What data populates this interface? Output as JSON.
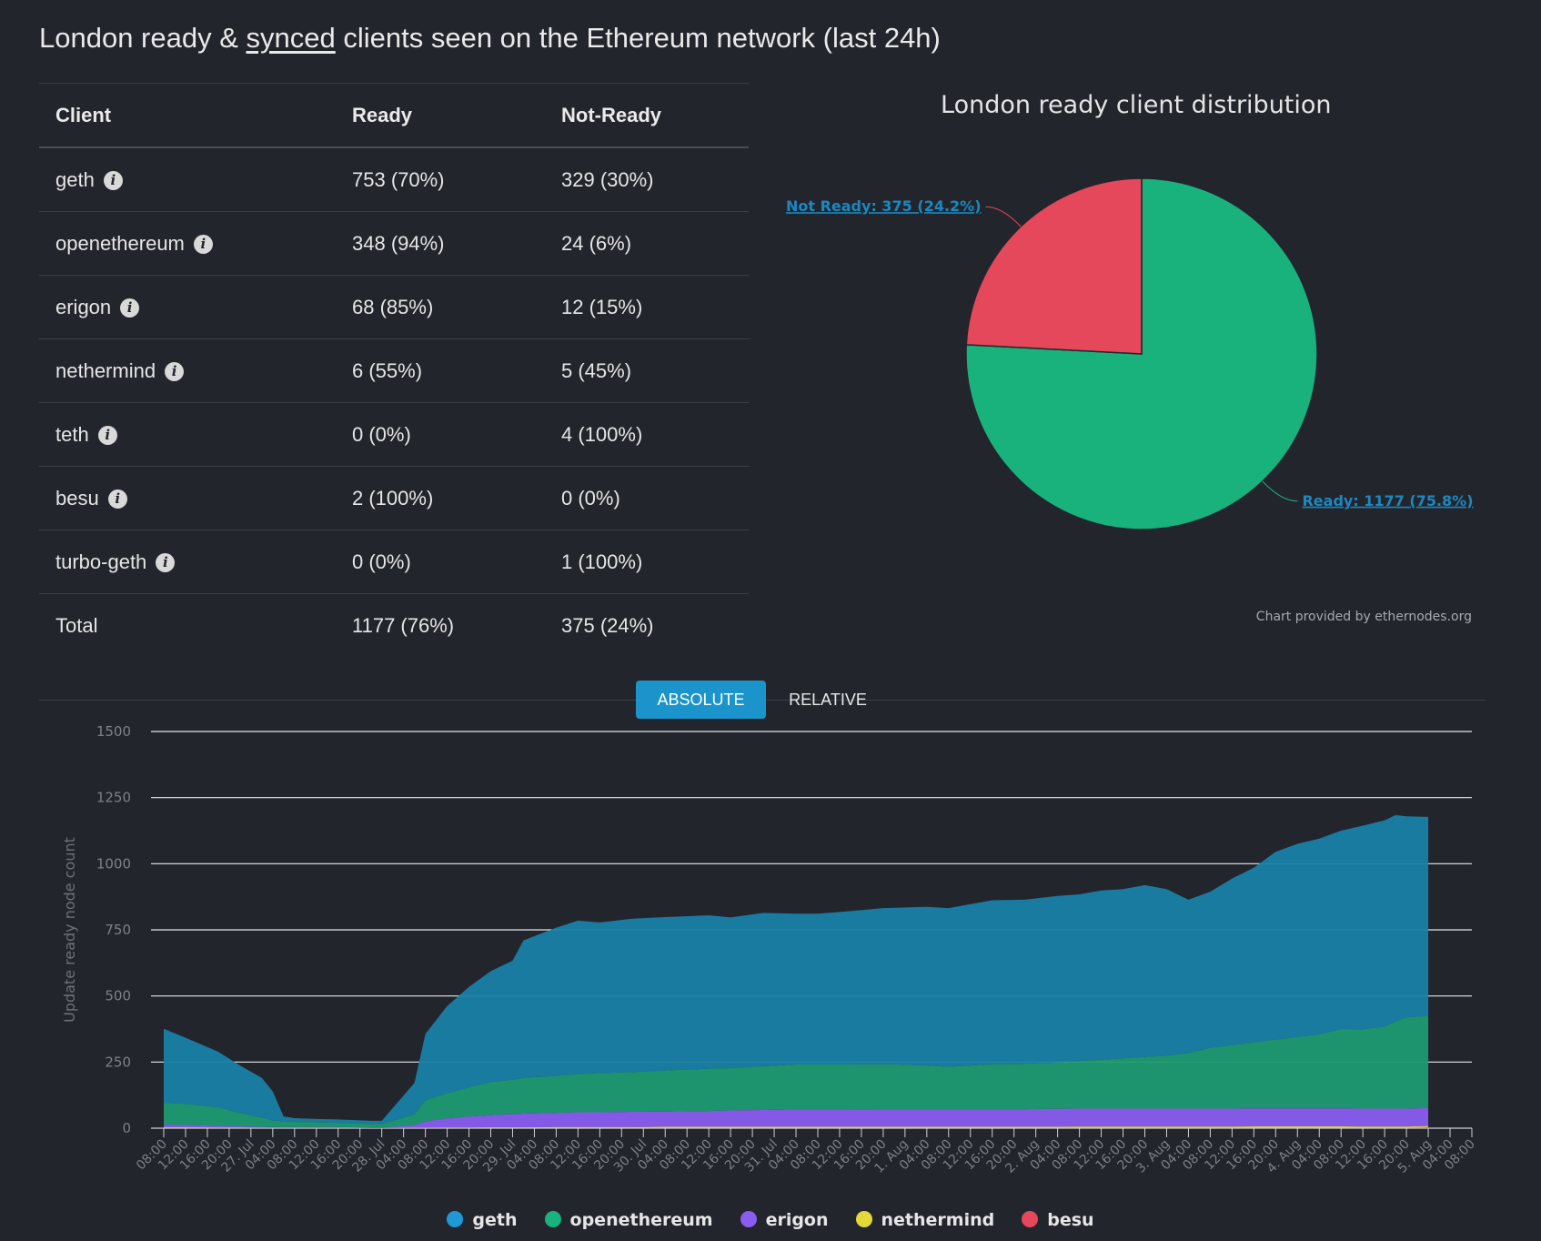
{
  "page": {
    "title_prefix": "London ready & ",
    "title_link": "synced",
    "title_suffix": " clients seen on the Ethereum network (last 24h)"
  },
  "table": {
    "headers": [
      "Client",
      "Ready",
      "Not-Ready"
    ],
    "rows": [
      {
        "client": "geth",
        "ready": "753 (70%)",
        "not_ready": "329 (30%)"
      },
      {
        "client": "openethereum",
        "ready": "348 (94%)",
        "not_ready": "24 (6%)"
      },
      {
        "client": "erigon",
        "ready": "68 (85%)",
        "not_ready": "12 (15%)"
      },
      {
        "client": "nethermind",
        "ready": "6 (55%)",
        "not_ready": "5 (45%)"
      },
      {
        "client": "teth",
        "ready": "0 (0%)",
        "not_ready": "4 (100%)"
      },
      {
        "client": "besu",
        "ready": "2 (100%)",
        "not_ready": "0 (0%)"
      },
      {
        "client": "turbo-geth",
        "ready": "0 (0%)",
        "not_ready": "1 (100%)"
      }
    ],
    "total": {
      "client": "Total",
      "ready": "1177 (76%)",
      "not_ready": "375 (24%)"
    },
    "info_icon": "info-icon"
  },
  "controls": {
    "absolute_label": "ABSOLUTE",
    "relative_label": "RELATIVE",
    "active": "ABSOLUTE"
  },
  "chart_data": [
    {
      "type": "pie",
      "title": "London ready client distribution",
      "credit": "Chart provided by ethernodes.org",
      "slices": [
        {
          "name": "Ready",
          "value": 1177,
          "label": "Ready: 1177 (75.8%)",
          "color": "#19b27c"
        },
        {
          "name": "Not Ready",
          "value": 375,
          "label": "Not Ready: 375 (24.2%)",
          "color": "#e5475b"
        }
      ]
    },
    {
      "type": "area",
      "stacked": true,
      "ylabel": "Update ready node count",
      "ylim": [
        0,
        1500
      ],
      "yticks": [
        0,
        250,
        500,
        750,
        1000,
        1250,
        1500
      ],
      "x_tick_labels": [
        "08:00",
        "12:00",
        "16:00",
        "20:00",
        "27. Jul",
        "04:00",
        "08:00",
        "12:00",
        "16:00",
        "20:00",
        "28. Jul",
        "04:00",
        "08:00",
        "12:00",
        "16:00",
        "20:00",
        "29. Jul",
        "04:00",
        "08:00",
        "12:00",
        "16:00",
        "20:00",
        "30. Jul",
        "04:00",
        "08:00",
        "12:00",
        "16:00",
        "20:00",
        "31. Jul",
        "04:00",
        "08:00",
        "12:00",
        "16:00",
        "20:00",
        "1. Aug",
        "04:00",
        "08:00",
        "12:00",
        "16:00",
        "20:00",
        "2. Aug",
        "04:00",
        "08:00",
        "12:00",
        "16:00",
        "20:00",
        "3. Aug",
        "04:00",
        "08:00",
        "12:00",
        "16:00",
        "20:00",
        "4. Aug",
        "04:00",
        "08:00",
        "12:00",
        "16:00",
        "20:00",
        "5. Aug",
        "04:00",
        "08:00"
      ],
      "x_hours_from_start": [
        0,
        4,
        10,
        14,
        18,
        20,
        22,
        24,
        28,
        32,
        38,
        40,
        46,
        48,
        52,
        56,
        60,
        64,
        66,
        72,
        76,
        80,
        86,
        92,
        100,
        104,
        110,
        116,
        120,
        126,
        132,
        140,
        144,
        148,
        152,
        158,
        164,
        168,
        172,
        176,
        180,
        184,
        188,
        192,
        196,
        200,
        204,
        208,
        212,
        216,
        220,
        224,
        226,
        228,
        232
      ],
      "series": [
        {
          "name": "besu",
          "color": "#e5475b",
          "values": [
            0,
            0,
            0,
            0,
            0,
            0,
            0,
            0,
            0,
            0,
            0,
            0,
            0,
            0,
            0,
            0,
            0,
            0,
            0,
            0,
            0,
            0,
            0,
            0,
            0,
            0,
            0,
            0,
            0,
            0,
            0,
            0,
            0,
            0,
            0,
            0,
            0,
            0,
            0,
            0,
            0,
            0,
            0,
            0,
            0,
            0,
            0,
            0,
            0,
            0,
            0,
            0,
            0,
            0,
            2
          ]
        },
        {
          "name": "nethermind",
          "color": "#e4d93a",
          "values": [
            3,
            3,
            2,
            2,
            1,
            1,
            1,
            1,
            1,
            1,
            0,
            0,
            1,
            1,
            2,
            2,
            3,
            3,
            3,
            4,
            4,
            4,
            4,
            5,
            5,
            5,
            5,
            5,
            5,
            5,
            5,
            5,
            5,
            5,
            5,
            5,
            5,
            6,
            6,
            6,
            6,
            6,
            6,
            6,
            6,
            7,
            7,
            7,
            7,
            7,
            6,
            6,
            6,
            6,
            6
          ]
        },
        {
          "name": "erigon",
          "color": "#8a5cf0",
          "values": [
            10,
            9,
            7,
            5,
            4,
            3,
            3,
            3,
            3,
            3,
            2,
            2,
            10,
            25,
            35,
            42,
            46,
            50,
            52,
            54,
            56,
            56,
            58,
            58,
            60,
            62,
            64,
            66,
            66,
            66,
            67,
            67,
            67,
            67,
            67,
            67,
            68,
            68,
            68,
            68,
            68,
            68,
            68,
            68,
            68,
            68,
            68,
            68,
            68,
            68,
            68,
            68,
            68,
            68,
            68
          ]
        },
        {
          "name": "openethereum",
          "color": "#1f9a72",
          "values": [
            83,
            80,
            70,
            50,
            35,
            25,
            22,
            20,
            18,
            16,
            14,
            14,
            40,
            80,
            95,
            110,
            125,
            130,
            135,
            140,
            145,
            148,
            150,
            155,
            160,
            160,
            165,
            170,
            170,
            170,
            170,
            165,
            160,
            165,
            170,
            172,
            175,
            180,
            185,
            190,
            195,
            200,
            210,
            230,
            240,
            250,
            260,
            270,
            280,
            300,
            300,
            310,
            330,
            345,
            348
          ]
        },
        {
          "name": "geth",
          "color": "#1a7fa6",
          "values": [
            280,
            250,
            210,
            180,
            150,
            110,
            18,
            14,
            13,
            13,
            12,
            12,
            120,
            250,
            330,
            380,
            420,
            450,
            520,
            560,
            580,
            570,
            580,
            580,
            580,
            570,
            580,
            570,
            570,
            580,
            590,
            600,
            600,
            610,
            620,
            620,
            630,
            630,
            640,
            640,
            650,
            630,
            580,
            590,
            630,
            660,
            710,
            730,
            740,
            750,
            770,
            780,
            780,
            760,
            753
          ]
        }
      ]
    }
  ],
  "legend": [
    {
      "name": "geth",
      "color": "#1f99d6"
    },
    {
      "name": "openethereum",
      "color": "#19b27c"
    },
    {
      "name": "erigon",
      "color": "#8a5cf0"
    },
    {
      "name": "nethermind",
      "color": "#e4d93a"
    },
    {
      "name": "besu",
      "color": "#e5475b"
    }
  ]
}
